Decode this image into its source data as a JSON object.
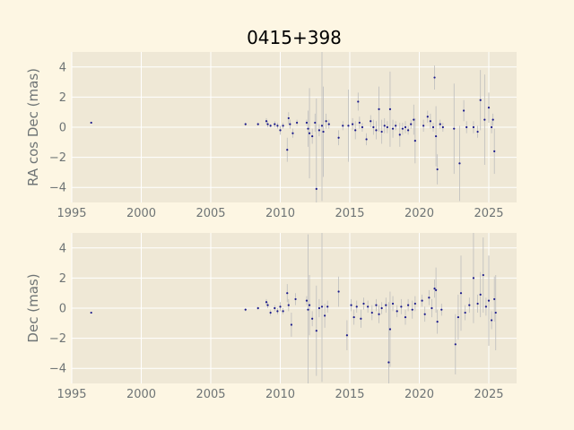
{
  "title": "0415+398",
  "colors": {
    "background": "#fdf6e3",
    "axes_face": "#efe8d6",
    "grid": "#ffffff",
    "point": "#1a1a8c",
    "errorbar": "#bdbdbd",
    "text": "#6e7475"
  },
  "chart_data": [
    {
      "type": "scatter",
      "ylabel": "RA cos Dec (mas)",
      "xlabel": "",
      "xlim": [
        1995,
        2027
      ],
      "ylim": [
        -5,
        5
      ],
      "xticks": [
        "1995",
        "2000",
        "2005",
        "2010",
        "2015",
        "2020",
        "2025"
      ],
      "yticks": [
        "−4",
        "−2",
        "0",
        "2",
        "4"
      ],
      "grid": true,
      "points": [
        [
          1996.4,
          0.3,
          0.05
        ],
        [
          2007.5,
          0.2,
          0.1
        ],
        [
          2008.4,
          0.2,
          0.1
        ],
        [
          2009.0,
          0.4,
          0.2
        ],
        [
          2009.1,
          0.2,
          0.2
        ],
        [
          2009.3,
          0.1,
          0.1
        ],
        [
          2009.6,
          0.2,
          0.2
        ],
        [
          2009.8,
          0.1,
          0.2
        ],
        [
          2010.0,
          -0.2,
          0.3
        ],
        [
          2010.2,
          0.1,
          0.2
        ],
        [
          2010.5,
          -1.5,
          0.8
        ],
        [
          2010.6,
          0.6,
          0.4
        ],
        [
          2010.7,
          0.2,
          0.3
        ],
        [
          2010.9,
          -0.4,
          0.3
        ],
        [
          2011.2,
          0.3,
          0.2
        ],
        [
          2011.9,
          0.3,
          0.2
        ],
        [
          2012.0,
          -0.1,
          1.2
        ],
        [
          2012.1,
          -0.4,
          3.0
        ],
        [
          2012.3,
          -0.6,
          0.5
        ],
        [
          2012.5,
          0.3,
          0.6
        ],
        [
          2012.6,
          -4.1,
          6.0
        ],
        [
          2012.8,
          -0.2,
          0.4
        ],
        [
          2013.0,
          0.1,
          5.0
        ],
        [
          2013.1,
          -0.3,
          3.0
        ],
        [
          2013.3,
          0.4,
          0.5
        ],
        [
          2013.5,
          0.2,
          0.3
        ],
        [
          2014.2,
          -0.7,
          0.5
        ],
        [
          2014.5,
          0.1,
          0.3
        ],
        [
          2014.9,
          0.1,
          2.4
        ],
        [
          2015.2,
          0.2,
          0.4
        ],
        [
          2015.4,
          -0.2,
          0.6
        ],
        [
          2015.6,
          1.7,
          0.6
        ],
        [
          2015.7,
          0.3,
          0.4
        ],
        [
          2015.9,
          0.0,
          0.3
        ],
        [
          2016.2,
          -0.8,
          0.4
        ],
        [
          2016.5,
          0.4,
          0.4
        ],
        [
          2016.7,
          0.0,
          0.5
        ],
        [
          2016.9,
          -0.2,
          0.6
        ],
        [
          2017.1,
          1.2,
          1.5
        ],
        [
          2017.3,
          -0.3,
          0.8
        ],
        [
          2017.5,
          0.1,
          0.5
        ],
        [
          2017.7,
          0.0,
          0.4
        ],
        [
          2017.9,
          1.2,
          2.5
        ],
        [
          2018.1,
          -0.1,
          0.6
        ],
        [
          2018.3,
          0.1,
          0.3
        ],
        [
          2018.6,
          -0.5,
          0.8
        ],
        [
          2018.8,
          -0.1,
          0.4
        ],
        [
          2019.0,
          0.0,
          0.4
        ],
        [
          2019.2,
          -0.2,
          0.3
        ],
        [
          2019.4,
          0.2,
          0.3
        ],
        [
          2019.6,
          0.5,
          1.0
        ],
        [
          2019.7,
          -0.9,
          1.5
        ],
        [
          2020.3,
          0.1,
          0.4
        ],
        [
          2020.6,
          0.7,
          0.4
        ],
        [
          2020.8,
          0.4,
          0.5
        ],
        [
          2021.0,
          0.0,
          0.3
        ],
        [
          2021.1,
          3.3,
          0.8
        ],
        [
          2021.2,
          -0.6,
          2.0
        ],
        [
          2021.3,
          -2.8,
          1.0
        ],
        [
          2021.5,
          0.2,
          0.3
        ],
        [
          2021.7,
          0.0,
          0.3
        ],
        [
          2022.5,
          -0.1,
          3.0
        ],
        [
          2022.9,
          -2.4,
          2.5
        ],
        [
          2023.2,
          1.1,
          0.7
        ],
        [
          2023.4,
          0.0,
          0.4
        ],
        [
          2023.9,
          0.0,
          0.4
        ],
        [
          2024.2,
          -0.3,
          0.4
        ],
        [
          2024.4,
          1.8,
          2.0
        ],
        [
          2024.7,
          0.5,
          3.0
        ],
        [
          2025.0,
          1.3,
          1.0
        ],
        [
          2025.2,
          0.0,
          0.4
        ],
        [
          2025.3,
          0.5,
          0.4
        ],
        [
          2025.4,
          -1.6,
          1.5
        ]
      ]
    },
    {
      "type": "scatter",
      "ylabel": "Dec (mas)",
      "xlabel": "",
      "xlim": [
        1995,
        2027
      ],
      "ylim": [
        -5,
        5
      ],
      "xticks": [
        "1995",
        "2000",
        "2005",
        "2010",
        "2015",
        "2020",
        "2025"
      ],
      "yticks": [
        "−4",
        "−2",
        "0",
        "2",
        "4"
      ],
      "grid": true,
      "points": [
        [
          1996.4,
          -0.3,
          0.05
        ],
        [
          2007.5,
          -0.1,
          0.1
        ],
        [
          2008.4,
          0.0,
          0.1
        ],
        [
          2009.0,
          0.4,
          0.2
        ],
        [
          2009.1,
          0.2,
          0.2
        ],
        [
          2009.3,
          -0.3,
          0.2
        ],
        [
          2009.6,
          0.0,
          0.2
        ],
        [
          2009.8,
          -0.2,
          0.2
        ],
        [
          2010.0,
          0.1,
          0.3
        ],
        [
          2010.2,
          -0.2,
          0.2
        ],
        [
          2010.5,
          1.0,
          0.6
        ],
        [
          2010.6,
          0.2,
          0.4
        ],
        [
          2010.8,
          -1.1,
          0.8
        ],
        [
          2011.1,
          0.6,
          0.4
        ],
        [
          2011.9,
          0.5,
          0.3
        ],
        [
          2012.0,
          -0.1,
          5.0
        ],
        [
          2012.1,
          0.2,
          2.0
        ],
        [
          2012.3,
          -0.7,
          0.5
        ],
        [
          2012.6,
          -1.5,
          3.0
        ],
        [
          2012.8,
          0.0,
          0.6
        ],
        [
          2013.0,
          0.1,
          5.0
        ],
        [
          2013.2,
          -0.5,
          0.8
        ],
        [
          2013.4,
          0.1,
          0.4
        ],
        [
          2014.2,
          1.1,
          1.0
        ],
        [
          2014.8,
          -1.8,
          1.0
        ],
        [
          2015.1,
          0.2,
          0.4
        ],
        [
          2015.3,
          -0.6,
          0.5
        ],
        [
          2015.5,
          0.1,
          0.4
        ],
        [
          2015.8,
          -0.7,
          0.6
        ],
        [
          2016.0,
          0.3,
          0.4
        ],
        [
          2016.3,
          0.1,
          0.4
        ],
        [
          2016.6,
          -0.3,
          0.5
        ],
        [
          2016.9,
          0.2,
          0.4
        ],
        [
          2017.1,
          -0.4,
          0.6
        ],
        [
          2017.3,
          0.0,
          0.4
        ],
        [
          2017.6,
          0.2,
          0.5
        ],
        [
          2017.8,
          -3.6,
          4.0
        ],
        [
          2017.9,
          -1.4,
          2.5
        ],
        [
          2018.1,
          0.3,
          0.5
        ],
        [
          2018.4,
          -0.2,
          0.4
        ],
        [
          2018.7,
          0.1,
          0.5
        ],
        [
          2019.0,
          -0.6,
          0.5
        ],
        [
          2019.2,
          0.2,
          0.4
        ],
        [
          2019.5,
          -0.1,
          0.6
        ],
        [
          2019.7,
          0.3,
          0.5
        ],
        [
          2020.2,
          0.5,
          0.4
        ],
        [
          2020.4,
          -0.4,
          0.5
        ],
        [
          2020.7,
          0.7,
          0.5
        ],
        [
          2020.9,
          0.0,
          0.6
        ],
        [
          2021.1,
          1.3,
          0.6
        ],
        [
          2021.2,
          1.2,
          1.5
        ],
        [
          2021.3,
          -0.9,
          0.8
        ],
        [
          2021.6,
          -0.1,
          0.4
        ],
        [
          2022.6,
          -2.4,
          2.0
        ],
        [
          2022.8,
          -0.6,
          1.5
        ],
        [
          2023.0,
          1.0,
          2.5
        ],
        [
          2023.3,
          -0.3,
          0.5
        ],
        [
          2023.6,
          0.2,
          0.5
        ],
        [
          2023.9,
          2.0,
          3.0
        ],
        [
          2024.2,
          0.3,
          0.6
        ],
        [
          2024.4,
          0.9,
          1.5
        ],
        [
          2024.6,
          2.2,
          2.5
        ],
        [
          2024.8,
          0.1,
          0.6
        ],
        [
          2025.0,
          0.5,
          3.0
        ],
        [
          2025.2,
          -0.8,
          0.6
        ],
        [
          2025.4,
          0.6,
          1.5
        ],
        [
          2025.5,
          -0.3,
          2.5
        ]
      ]
    }
  ]
}
